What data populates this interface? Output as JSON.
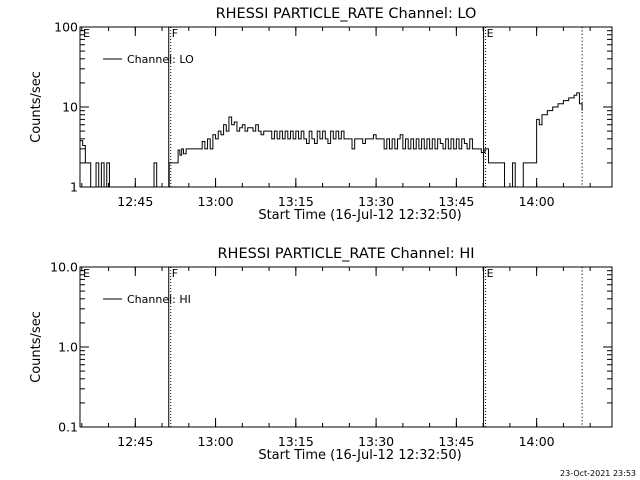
{
  "footer": {
    "timestamp": "23-Oct-2021 23:53"
  },
  "chart_data": [
    {
      "type": "line",
      "title": "RHESSI PARTICLE_RATE Channel: LO",
      "xlabel": "Start Time (16-Jul-12 12:32:50)",
      "ylabel": "Counts/sec",
      "yscale": "log",
      "ylim": [
        1,
        100
      ],
      "xlim": [
        "12:34:40",
        "14:14:05"
      ],
      "xticks": [
        "12:45",
        "13:00",
        "13:15",
        "13:30",
        "13:45",
        "14:00"
      ],
      "yticks": [
        "1",
        "10",
        "100"
      ],
      "legend": {
        "location": "upper-left",
        "entries": [
          "Channel: LO"
        ]
      },
      "markers": [
        {
          "label": "E",
          "time": "12:34:40",
          "style": "dotted"
        },
        {
          "label": "F",
          "time": "12:51:15",
          "style": "solid"
        },
        {
          "label": "E",
          "time": "13:50:05",
          "style": "solid"
        },
        {
          "label": "",
          "time": "14:08:30",
          "style": "dotted"
        }
      ],
      "series": [
        {
          "name": "Channel: LO",
          "points": [
            [
              "12:34:40",
              3.8
            ],
            [
              "12:35:10",
              3.3
            ],
            [
              "12:35:40",
              2.0
            ],
            [
              "12:36:10",
              2.0
            ],
            [
              "12:36:40",
              1.0
            ],
            [
              "12:37:10",
              1.0
            ],
            [
              "12:37:40",
              2.0
            ],
            [
              "12:38:10",
              1.0
            ],
            [
              "12:38:40",
              2.0
            ],
            [
              "12:39:10",
              1.0
            ],
            [
              "12:39:40",
              2.0
            ],
            [
              "12:40:10",
              1.0
            ],
            [
              "12:41:00",
              1.0
            ],
            [
              "12:42:00",
              1.0
            ],
            [
              "12:43:00",
              1.0
            ],
            [
              "12:44:00",
              1.0
            ],
            [
              "12:45:00",
              1.0
            ],
            [
              "12:46:00",
              1.0
            ],
            [
              "12:47:00",
              1.0
            ],
            [
              "12:48:00",
              1.0
            ],
            [
              "12:48:30",
              2.0
            ],
            [
              "12:49:00",
              1.0
            ],
            [
              "12:50:00",
              1.0
            ],
            [
              "12:51:00",
              1.0
            ],
            [
              "12:51:20",
              2.0
            ],
            [
              "12:52:30",
              2.0
            ],
            [
              "12:53:00",
              2.9
            ],
            [
              "12:53:20",
              2.5
            ],
            [
              "12:53:40",
              3.0
            ],
            [
              "12:54:00",
              2.6
            ],
            [
              "12:54:30",
              3.0
            ],
            [
              "12:55:00",
              3.0
            ],
            [
              "12:56:00",
              3.0
            ],
            [
              "12:57:00",
              3.0
            ],
            [
              "12:57:30",
              3.7
            ],
            [
              "12:58:00",
              3.0
            ],
            [
              "12:58:30",
              4.0
            ],
            [
              "12:59:00",
              3.0
            ],
            [
              "12:59:30",
              4.5
            ],
            [
              "13:00:00",
              4.0
            ],
            [
              "13:00:30",
              5.0
            ],
            [
              "13:01:00",
              4.5
            ],
            [
              "13:01:30",
              6.0
            ],
            [
              "13:02:00",
              5.0
            ],
            [
              "13:02:30",
              7.5
            ],
            [
              "13:03:00",
              6.0
            ],
            [
              "13:03:30",
              6.5
            ],
            [
              "13:04:00",
              5.0
            ],
            [
              "13:04:30",
              5.5
            ],
            [
              "13:05:00",
              6.0
            ],
            [
              "13:05:30",
              5.0
            ],
            [
              "13:06:00",
              5.5
            ],
            [
              "13:07:00",
              5.0
            ],
            [
              "13:07:30",
              6.0
            ],
            [
              "13:08:00",
              5.0
            ],
            [
              "13:08:30",
              4.5
            ],
            [
              "13:09:00",
              5.0
            ],
            [
              "13:10:00",
              5.0
            ],
            [
              "13:10:30",
              4.0
            ],
            [
              "13:11:00",
              5.0
            ],
            [
              "13:11:30",
              4.0
            ],
            [
              "13:12:00",
              5.0
            ],
            [
              "13:12:30",
              4.0
            ],
            [
              "13:13:00",
              5.0
            ],
            [
              "13:13:30",
              4.0
            ],
            [
              "13:14:00",
              5.0
            ],
            [
              "13:14:30",
              4.0
            ],
            [
              "13:15:00",
              5.0
            ],
            [
              "13:15:30",
              4.0
            ],
            [
              "13:16:00",
              5.0
            ],
            [
              "13:16:30",
              4.0
            ],
            [
              "13:17:00",
              3.5
            ],
            [
              "13:17:30",
              5.0
            ],
            [
              "13:18:00",
              4.0
            ],
            [
              "13:18:30",
              3.5
            ],
            [
              "13:19:00",
              5.0
            ],
            [
              "13:19:30",
              4.0
            ],
            [
              "13:20:00",
              5.0
            ],
            [
              "13:20:30",
              4.0
            ],
            [
              "13:21:00",
              3.5
            ],
            [
              "13:21:30",
              5.0
            ],
            [
              "13:22:00",
              4.0
            ],
            [
              "13:22:30",
              5.0
            ],
            [
              "13:23:00",
              4.0
            ],
            [
              "13:23:30",
              5.0
            ],
            [
              "13:24:00",
              4.0
            ],
            [
              "13:25:00",
              4.0
            ],
            [
              "13:25:30",
              3.0
            ],
            [
              "13:26:00",
              4.0
            ],
            [
              "13:27:00",
              4.0
            ],
            [
              "13:27:30",
              3.5
            ],
            [
              "13:28:00",
              4.0
            ],
            [
              "13:29:00",
              4.0
            ],
            [
              "13:29:30",
              4.5
            ],
            [
              "13:30:00",
              4.0
            ],
            [
              "13:31:00",
              4.0
            ],
            [
              "13:31:30",
              3.0
            ],
            [
              "13:32:00",
              4.0
            ],
            [
              "13:32:30",
              3.0
            ],
            [
              "13:33:00",
              4.0
            ],
            [
              "13:33:30",
              3.0
            ],
            [
              "13:34:00",
              4.0
            ],
            [
              "13:34:30",
              4.5
            ],
            [
              "13:35:00",
              3.0
            ],
            [
              "13:35:30",
              4.0
            ],
            [
              "13:36:00",
              3.0
            ],
            [
              "13:36:30",
              4.0
            ],
            [
              "13:37:00",
              3.0
            ],
            [
              "13:37:30",
              4.0
            ],
            [
              "13:38:00",
              3.0
            ],
            [
              "13:38:30",
              4.0
            ],
            [
              "13:39:00",
              3.0
            ],
            [
              "13:39:30",
              4.0
            ],
            [
              "13:40:00",
              3.0
            ],
            [
              "13:40:30",
              4.0
            ],
            [
              "13:41:00",
              3.0
            ],
            [
              "13:41:30",
              4.0
            ],
            [
              "13:42:00",
              3.5
            ],
            [
              "13:42:30",
              3.0
            ],
            [
              "13:43:00",
              4.0
            ],
            [
              "13:43:30",
              3.0
            ],
            [
              "13:44:00",
              4.0
            ],
            [
              "13:44:30",
              3.0
            ],
            [
              "13:45:00",
              4.0
            ],
            [
              "13:45:30",
              3.0
            ],
            [
              "13:46:00",
              4.0
            ],
            [
              "13:46:30",
              3.5
            ],
            [
              "13:47:00",
              3.0
            ],
            [
              "13:47:30",
              4.0
            ],
            [
              "13:48:00",
              3.0
            ],
            [
              "13:48:30",
              3.0
            ],
            [
              "13:49:00",
              3.0
            ],
            [
              "13:49:40",
              2.7
            ],
            [
              "13:50:20",
              3.0
            ],
            [
              "13:51:00",
              2.0
            ],
            [
              "13:52:00",
              2.0
            ],
            [
              "13:53:00",
              2.0
            ],
            [
              "13:53:30",
              2.0
            ],
            [
              "13:54:00",
              1.0
            ],
            [
              "13:55:00",
              1.0
            ],
            [
              "13:55:30",
              2.0
            ],
            [
              "13:56:00",
              1.0
            ],
            [
              "13:57:00",
              1.0
            ],
            [
              "13:57:30",
              2.0
            ],
            [
              "13:58:00",
              2.0
            ],
            [
              "13:59:00",
              2.0
            ],
            [
              "14:00:00",
              7.0
            ],
            [
              "14:00:30",
              6.0
            ],
            [
              "14:01:00",
              8.0
            ],
            [
              "14:02:00",
              9.0
            ],
            [
              "14:03:00",
              10.0
            ],
            [
              "14:04:00",
              11.0
            ],
            [
              "14:05:00",
              12.0
            ],
            [
              "14:06:00",
              13.0
            ],
            [
              "14:07:00",
              14.0
            ],
            [
              "14:07:30",
              15.0
            ],
            [
              "14:08:00",
              11.0
            ],
            [
              "14:08:30",
              9.0
            ]
          ]
        }
      ]
    },
    {
      "type": "line",
      "title": "RHESSI PARTICLE_RATE Channel: HI",
      "xlabel": "Start Time (16-Jul-12 12:32:50)",
      "ylabel": "Counts/sec",
      "yscale": "log",
      "ylim": [
        0.1,
        10.0
      ],
      "xlim": [
        "12:34:40",
        "14:14:05"
      ],
      "xticks": [
        "12:45",
        "13:00",
        "13:15",
        "13:30",
        "13:45",
        "14:00"
      ],
      "yticks": [
        "0.1",
        "1.0",
        "10.0"
      ],
      "legend": {
        "location": "upper-left",
        "entries": [
          "Channel: HI"
        ]
      },
      "markers": [
        {
          "label": "E",
          "time": "12:34:40",
          "style": "dotted"
        },
        {
          "label": "F",
          "time": "12:51:15",
          "style": "solid"
        },
        {
          "label": "E",
          "time": "13:50:05",
          "style": "solid"
        },
        {
          "label": "",
          "time": "14:08:30",
          "style": "dotted"
        }
      ],
      "series": [
        {
          "name": "Channel: HI",
          "points": []
        }
      ]
    }
  ]
}
